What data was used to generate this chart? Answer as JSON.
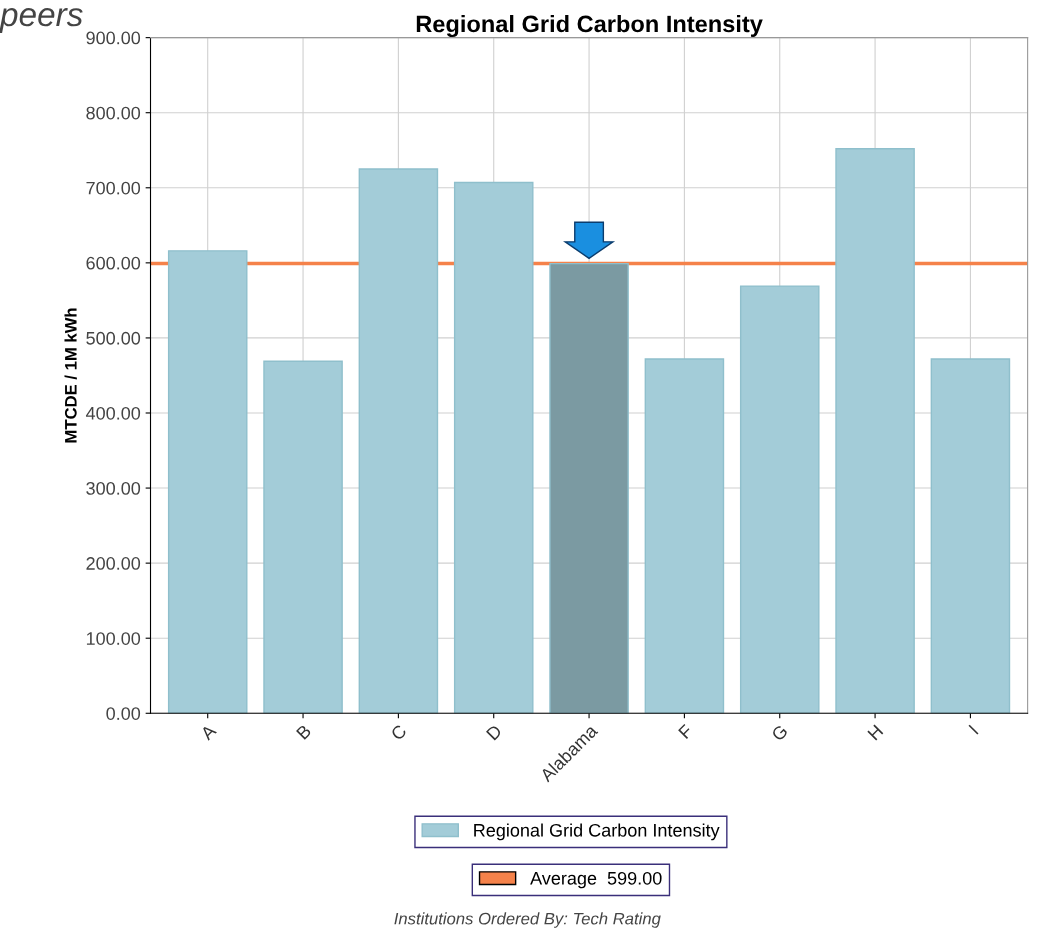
{
  "chart_data": {
    "type": "bar",
    "title": "Regional Grid Carbon Intensity",
    "ylabel": "MTCDE / 1M kWh",
    "categories": [
      "A",
      "B",
      "C",
      "D",
      "Alabama",
      "F",
      "G",
      "H",
      "I"
    ],
    "series": [
      {
        "name": "Regional Grid Carbon Intensity",
        "color": "#a3ccd8",
        "colors": [
          "#a3ccd8",
          "#a3ccd8",
          "#a3ccd8",
          "#a3ccd8",
          "#7b9aa2",
          "#a3ccd8",
          "#a3ccd8",
          "#a3ccd8",
          "#a3ccd8"
        ],
        "values": [
          616,
          469,
          725,
          707,
          599,
          472,
          569,
          752,
          472
        ]
      }
    ],
    "ylim": [
      0,
      900
    ],
    "yticks": [
      {
        "value": 0,
        "label": "0.00"
      },
      {
        "value": 100,
        "label": "100.00"
      },
      {
        "value": 200,
        "label": "200.00"
      },
      {
        "value": 300,
        "label": "300.00"
      },
      {
        "value": 400,
        "label": "400.00"
      },
      {
        "value": 500,
        "label": "500.00"
      },
      {
        "value": 600,
        "label": "600.00"
      },
      {
        "value": 700,
        "label": "700.00"
      },
      {
        "value": 800,
        "label": "800.00"
      },
      {
        "value": 900,
        "label": "900.00"
      }
    ],
    "ref_lines": [
      {
        "axis": "y",
        "value": 599,
        "label": "Average  599.00",
        "color": "#f5824a"
      }
    ],
    "grid": true,
    "legend": "bottom",
    "annotations": [
      "peers",
      "Institutions Ordered By: Tech Rating"
    ]
  }
}
